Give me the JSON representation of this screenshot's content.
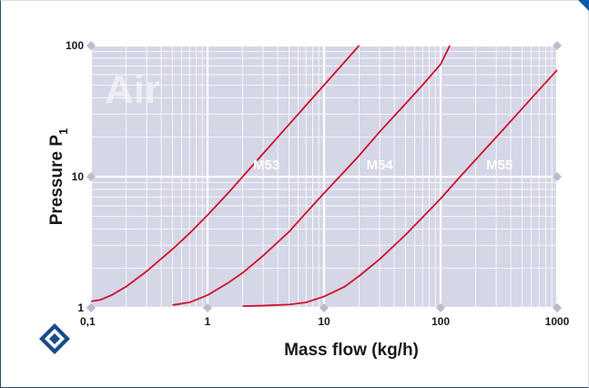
{
  "chart_data": {
    "type": "line",
    "medium_label": "Air",
    "xlabel": "Mass flow (kg/h)",
    "ylabel": {
      "main": "Pressure P",
      "subscript": "1"
    },
    "x_scale": "log",
    "y_scale": "log",
    "xlim": [
      0.1,
      1000
    ],
    "ylim": [
      1,
      100
    ],
    "x_ticks": [
      {
        "value": 0.1,
        "label": "0,1"
      },
      {
        "value": 1,
        "label": "1"
      },
      {
        "value": 10,
        "label": "10"
      },
      {
        "value": 100,
        "label": "100"
      },
      {
        "value": 1000,
        "label": "1000"
      }
    ],
    "y_ticks": [
      {
        "value": 1,
        "label": "1"
      },
      {
        "value": 10,
        "label": "10"
      },
      {
        "value": 100,
        "label": "100"
      }
    ],
    "grid": true,
    "series": [
      {
        "name": "M53",
        "color": "#d0102e",
        "x": [
          0.1,
          0.12,
          0.15,
          0.2,
          0.3,
          0.5,
          0.7,
          1,
          1.5,
          2,
          3,
          5,
          7,
          10,
          15,
          20
        ],
        "y": [
          1.12,
          1.15,
          1.25,
          1.45,
          1.9,
          2.8,
          3.7,
          5.1,
          7.5,
          10.0,
          15.0,
          25,
          35,
          50,
          75,
          100
        ]
      },
      {
        "name": "M54",
        "color": "#d0102e",
        "x": [
          0.5,
          0.7,
          1,
          1.5,
          2,
          3,
          5,
          7,
          10,
          15,
          20,
          30,
          50,
          70,
          100,
          120
        ],
        "y": [
          1.05,
          1.1,
          1.25,
          1.55,
          1.85,
          2.5,
          3.8,
          5.3,
          7.5,
          11,
          14.5,
          22,
          36,
          50,
          72,
          100
        ]
      },
      {
        "name": "M55",
        "color": "#d0102e",
        "x": [
          2,
          3,
          5,
          7,
          10,
          15,
          20,
          30,
          50,
          70,
          100,
          150,
          200,
          300,
          500,
          700,
          1000
        ],
        "y": [
          1.03,
          1.04,
          1.06,
          1.1,
          1.22,
          1.45,
          1.75,
          2.35,
          3.6,
          4.9,
          6.8,
          10.2,
          13.5,
          20,
          33,
          46,
          65
        ]
      }
    ]
  },
  "logo": {
    "name": "diamond-logo",
    "colors": [
      "#1a4a8a",
      "#ffffff"
    ]
  },
  "colors": {
    "plot_background": "#d5d6e6",
    "grid": "#ffffff",
    "curve": "#d0102e",
    "marker": "#b8bccb"
  }
}
